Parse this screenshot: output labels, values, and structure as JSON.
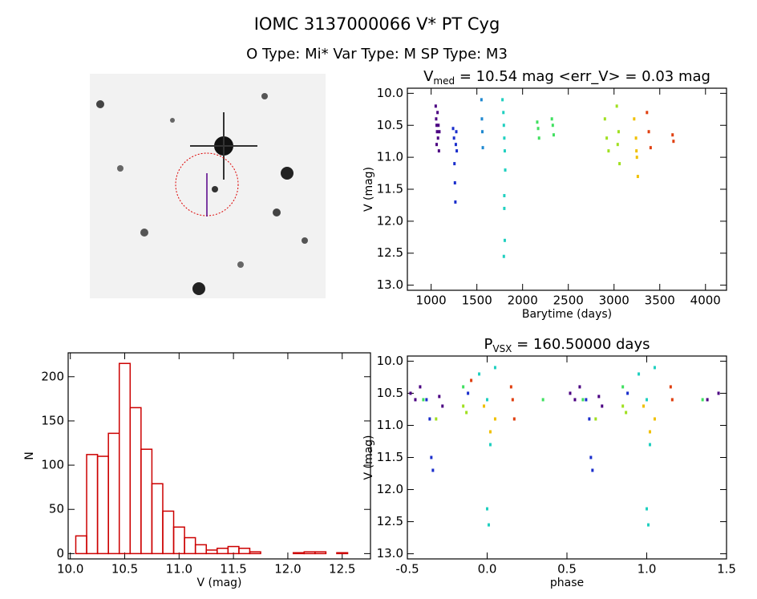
{
  "header": {
    "title": "IOMC 3137000066   V* PT Cyg",
    "subtitle": "O Type: Mi*  Var Type: M  SP Type: M3"
  },
  "chart_data": [
    {
      "type": "scatter",
      "title": "V",
      "title_sub": "med",
      "title_rest": " = 10.54 mag <err_V> = 0.03 mag",
      "xlabel": "Barytime (days)",
      "ylabel": "V (mag)",
      "xlim": [
        740,
        4230
      ],
      "ylim": [
        13.08,
        9.92
      ],
      "xticks": [
        1000,
        1500,
        2000,
        2500,
        3000,
        3500,
        4000
      ],
      "yticks": [
        {
          "value": 10,
          "label": "10.0"
        },
        {
          "value": 10.5,
          "label": "10.5"
        },
        {
          "value": 11,
          "label": "11.0"
        },
        {
          "value": 11.5,
          "label": "11.5"
        },
        {
          "value": 12,
          "label": "12.0"
        },
        {
          "value": 12.5,
          "label": "12.5"
        },
        {
          "value": 13,
          "label": "13.0"
        }
      ],
      "series": [
        {
          "color": "#4b0082",
          "x": [
            1050,
            1055,
            1060,
            1065,
            1070,
            1075,
            1080,
            1085,
            1090,
            1060
          ],
          "values": [
            10.2,
            10.4,
            10.5,
            10.6,
            10.3,
            10.7,
            10.5,
            10.9,
            10.6,
            10.8
          ]
        },
        {
          "color": "#1a2ecc",
          "x": [
            1240,
            1250,
            1260,
            1265,
            1270,
            1275,
            1280,
            1255
          ],
          "values": [
            10.55,
            10.7,
            11.4,
            11.7,
            10.8,
            10.6,
            10.9,
            11.1
          ]
        },
        {
          "color": "#1e88d0",
          "x": [
            1550,
            1555,
            1560,
            1565
          ],
          "values": [
            10.1,
            10.4,
            10.6,
            10.85
          ]
        },
        {
          "color": "#20d0c0",
          "x": [
            1780,
            1790,
            1795,
            1800,
            1805,
            1810,
            1800,
            1805,
            1795,
            1800
          ],
          "values": [
            10.1,
            10.3,
            10.5,
            10.7,
            10.9,
            11.2,
            11.6,
            12.3,
            12.55,
            11.8
          ]
        },
        {
          "color": "#40e060",
          "x": [
            2160,
            2170,
            2180,
            2320,
            2330,
            2340
          ],
          "values": [
            10.45,
            10.55,
            10.7,
            10.4,
            10.5,
            10.65
          ]
        },
        {
          "color": "#a0e020",
          "x": [
            2900,
            2920,
            2940,
            3030,
            3050,
            3060,
            3040
          ],
          "values": [
            10.4,
            10.7,
            10.9,
            10.2,
            10.6,
            11.1,
            10.8
          ]
        },
        {
          "color": "#f0c000",
          "x": [
            3220,
            3240,
            3250,
            3260,
            3245
          ],
          "values": [
            10.4,
            10.7,
            11.0,
            11.3,
            10.9
          ]
        },
        {
          "color": "#e04010",
          "x": [
            3360,
            3380,
            3400,
            3640,
            3650
          ],
          "values": [
            10.3,
            10.6,
            10.85,
            10.65,
            10.75
          ]
        }
      ]
    },
    {
      "type": "histogram",
      "xlabel": "V (mag)",
      "ylabel": "N",
      "color": "#cc0000",
      "bins": [
        10.05,
        10.15,
        10.25,
        10.35,
        10.45,
        10.55,
        10.65,
        10.75,
        10.85,
        10.95,
        11.05,
        11.15,
        11.25,
        11.35,
        11.45,
        11.55,
        11.65,
        11.75,
        11.85,
        11.95,
        12.05,
        12.15,
        12.25,
        12.35,
        12.45,
        12.55,
        12.65
      ],
      "values": [
        20,
        112,
        110,
        136,
        215,
        165,
        118,
        79,
        48,
        30,
        18,
        10,
        4,
        6,
        8,
        6,
        2,
        0,
        0,
        0,
        1,
        2,
        2,
        0,
        1,
        0
      ],
      "xlim": [
        9.98,
        12.76
      ],
      "ylim": [
        -6,
        227
      ],
      "xticks": [
        {
          "value": 10,
          "label": "10.0"
        },
        {
          "value": 10.5,
          "label": "10.5"
        },
        {
          "value": 11,
          "label": "11.0"
        },
        {
          "value": 11.5,
          "label": "11.5"
        },
        {
          "value": 12,
          "label": "12.0"
        },
        {
          "value": 12.5,
          "label": "12.5"
        }
      ],
      "yticks": [
        0,
        50,
        100,
        150,
        200
      ]
    },
    {
      "type": "scatter",
      "title": "P",
      "title_sub": "VSX",
      "title_rest": " = 160.50000 days",
      "xlabel": "phase",
      "ylabel": "V (mag)",
      "xlim": [
        -0.5,
        1.5
      ],
      "ylim": [
        13.08,
        9.92
      ],
      "xticks": [
        {
          "value": -0.5,
          "label": "-0.5"
        },
        {
          "value": 0,
          "label": "0.0"
        },
        {
          "value": 0.5,
          "label": "0.5"
        },
        {
          "value": 1,
          "label": "1.0"
        },
        {
          "value": 1.5,
          "label": "1.5"
        }
      ],
      "yticks": [
        {
          "value": 10,
          "label": "10.0"
        },
        {
          "value": 10.5,
          "label": "10.5"
        },
        {
          "value": 11,
          "label": "11.0"
        },
        {
          "value": 11.5,
          "label": "11.5"
        },
        {
          "value": 12,
          "label": "12.0"
        },
        {
          "value": 12.5,
          "label": "12.5"
        },
        {
          "value": 13,
          "label": "13.0"
        }
      ],
      "series": [
        {
          "color": "#4b0082",
          "x": [
            -0.48,
            -0.45,
            -0.42,
            -0.3,
            -0.28,
            0.52,
            0.55,
            0.58,
            0.7,
            0.72,
            1.38,
            1.45
          ],
          "values": [
            10.5,
            10.6,
            10.4,
            10.55,
            10.7,
            10.5,
            10.6,
            10.4,
            10.55,
            10.7,
            10.6,
            10.5
          ]
        },
        {
          "color": "#1a2ecc",
          "x": [
            -0.38,
            -0.36,
            -0.35,
            -0.34,
            0.62,
            0.64,
            0.65,
            0.66,
            -0.12,
            0.88
          ],
          "values": [
            10.6,
            10.9,
            11.5,
            11.7,
            10.6,
            10.9,
            11.5,
            11.7,
            10.5,
            10.5
          ]
        },
        {
          "color": "#20d0c0",
          "x": [
            -0.05,
            0.0,
            0.02,
            0.0,
            0.01,
            0.95,
            1.0,
            1.02,
            1.0,
            1.01,
            0.05,
            1.05
          ],
          "values": [
            10.2,
            10.6,
            11.3,
            12.3,
            12.55,
            10.2,
            10.6,
            11.3,
            12.3,
            12.55,
            10.1,
            10.1
          ]
        },
        {
          "color": "#40e060",
          "x": [
            -0.4,
            -0.15,
            0.35,
            0.6,
            0.85,
            1.35
          ],
          "values": [
            10.6,
            10.4,
            10.6,
            10.6,
            10.4,
            10.6
          ]
        },
        {
          "color": "#a0e020",
          "x": [
            -0.32,
            -0.15,
            -0.13,
            0.68,
            0.85,
            0.87
          ],
          "values": [
            10.9,
            10.7,
            10.8,
            10.9,
            10.7,
            10.8
          ]
        },
        {
          "color": "#f0c000",
          "x": [
            -0.02,
            0.02,
            0.05,
            0.98,
            1.02,
            1.05
          ],
          "values": [
            10.7,
            11.1,
            10.9,
            10.7,
            11.1,
            10.9
          ]
        },
        {
          "color": "#e04010",
          "x": [
            0.15,
            0.16,
            0.17,
            1.15,
            1.16,
            -0.1
          ],
          "values": [
            10.4,
            10.6,
            10.9,
            10.4,
            10.6,
            10.3
          ]
        }
      ]
    }
  ]
}
